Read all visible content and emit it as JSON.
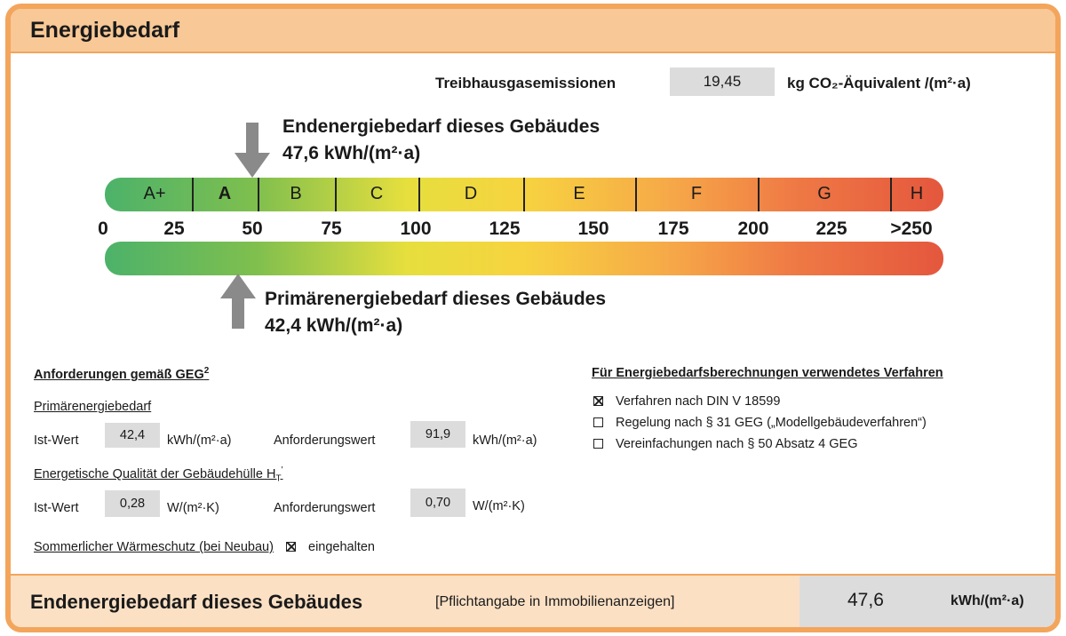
{
  "header": {
    "title": "Energiebedarf"
  },
  "emissions": {
    "label": "Treibhausgasemissionen",
    "value": "19,45",
    "unit": "kg CO₂-Äquivalent /(m²·a)"
  },
  "end_energy": {
    "label": "Endenergiebedarf dieses Gebäudes",
    "value": "47,6 kWh/(m²·a)",
    "numeric": 47.6
  },
  "primary_energy": {
    "label": "Primärenergiebedarf dieses Gebäudes",
    "value": "42,4 kWh/(m²·a)",
    "numeric": 42.4
  },
  "scale": {
    "classes": [
      "A+",
      "A",
      "B",
      "C",
      "D",
      "E",
      "F",
      "G",
      "H"
    ],
    "ticks": [
      "0",
      "25",
      "50",
      "75",
      "100",
      "125",
      "150",
      "175",
      "200",
      "225",
      ">250"
    ],
    "colors": {
      "green": "#4cb26a",
      "yellow": "#f7d340",
      "red": "#e4573d"
    }
  },
  "requirements": {
    "title": "Anforderungen gemäß GEG",
    "title_sup": "2",
    "primary": {
      "title": "Primärenergiebedarf",
      "ist_label": "Ist-Wert",
      "ist_value": "42,4",
      "unit": "kWh/(m²·a)",
      "req_label": "Anforderungswert",
      "req_value": "91,9"
    },
    "envelope": {
      "title": "Energetische Qualität der Gebäudehülle H",
      "title_sub": "T",
      "title_sup": "'",
      "ist_label": "Ist-Wert",
      "ist_value": "0,28",
      "unit": "W/(m²·K)",
      "req_label": "Anforderungswert",
      "req_value": "0,70"
    },
    "summer": {
      "label": "Sommerlicher Wärmeschutz (bei Neubau)",
      "status": "eingehalten",
      "checked": true
    }
  },
  "method": {
    "title": "Für Energiebedarfsberechnungen verwendetes Verfahren",
    "options": [
      {
        "label": "Verfahren nach DIN V 18599",
        "checked": true
      },
      {
        "label": "Regelung nach § 31 GEG („Modellgebäudeverfahren“)",
        "checked": false
      },
      {
        "label": "Vereinfachungen nach § 50 Absatz 4 GEG",
        "checked": false
      }
    ]
  },
  "footer": {
    "label": "Endenergiebedarf dieses Gebäudes",
    "note": "[Pflichtangabe in Immobilienanzeigen]",
    "value": "47,6",
    "unit": "kWh/(m²·a)"
  }
}
